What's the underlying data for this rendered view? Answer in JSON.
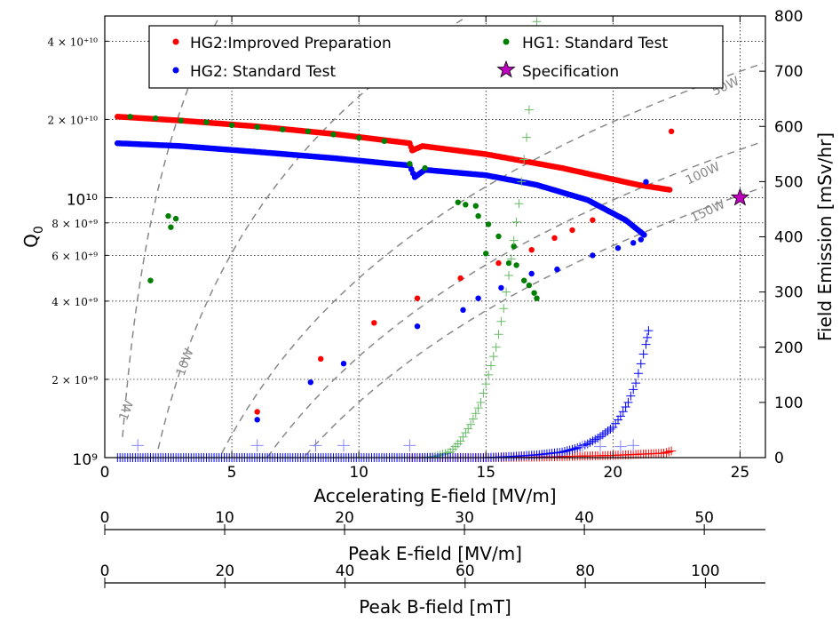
{
  "chart_data": {
    "type": "scatter",
    "x_axis": {
      "label": "Accelerating E-field [MV/m]",
      "range": [
        0,
        26
      ],
      "ticks": [
        "0",
        "5",
        "10",
        "15",
        "20",
        "25"
      ]
    },
    "y_axis_left": {
      "label": "Q0",
      "scale": "log",
      "range": [
        1000000000.0,
        50000000000.0
      ],
      "ticks": [
        {
          "v": 1000000000.0,
          "label": "10⁹",
          "major": true
        },
        {
          "v": 2000000000.0,
          "label": "2 × 10⁺⁹",
          "major": false
        },
        {
          "v": 4000000000.0,
          "label": "4 × 10⁺⁹",
          "major": false
        },
        {
          "v": 6000000000.0,
          "label": "6 × 10⁺⁹",
          "major": false
        },
        {
          "v": 8000000000.0,
          "label": "8 × 10⁺⁹",
          "major": false
        },
        {
          "v": 10000000000.0,
          "label": "10¹⁰",
          "major": true
        },
        {
          "v": 20000000000.0,
          "label": "2 × 10⁺¹⁰",
          "major": false
        },
        {
          "v": 40000000000.0,
          "label": "4 × 10⁺¹⁰",
          "major": false
        }
      ]
    },
    "y_axis_right": {
      "label": "Field Emission [mSv/hr]",
      "range": [
        0,
        800
      ],
      "ticks": [
        "0",
        "100",
        "200",
        "300",
        "400",
        "500",
        "600",
        "700",
        "800"
      ]
    },
    "secondary_x_axes": [
      {
        "label": "Peak E-field [MV/m]",
        "range": [
          0,
          55.1
        ],
        "ticks": [
          "0",
          "10",
          "20",
          "30",
          "40",
          "50"
        ]
      },
      {
        "label": "Peak B-field [mT]",
        "range": [
          0,
          110
        ],
        "ticks": [
          "0",
          "20",
          "40",
          "60",
          "80",
          "100"
        ]
      }
    ],
    "grid": true,
    "legend": {
      "placement": "top",
      "entries": [
        {
          "label": "HG2:Improved Preparation",
          "color": "#ff0000",
          "marker": "dot"
        },
        {
          "label": "HG1: Standard Test",
          "color": "#008000",
          "marker": "dot"
        },
        {
          "label": "HG2: Standard Test",
          "color": "#0000ff",
          "marker": "dot"
        },
        {
          "label": "Specification",
          "color": "#bf00bf",
          "marker": "star"
        }
      ]
    },
    "contours": [
      {
        "label": "1W",
        "power": 1
      },
      {
        "label": "10W",
        "power": 10
      },
      {
        "label": "50W",
        "power": 50
      },
      {
        "label": "100W",
        "power": 100
      },
      {
        "label": "150W",
        "power": 150
      }
    ],
    "series": [
      {
        "name": "HG2:Improved Preparation",
        "kind": "q0_curve",
        "color": "#ff0000",
        "points": [
          [
            0.5,
            20500000000.0
          ],
          [
            3,
            19800000000.0
          ],
          [
            6,
            18800000000.0
          ],
          [
            9,
            17600000000.0
          ],
          [
            12,
            16200000000.0
          ],
          [
            12.1,
            15200000000.0
          ],
          [
            12.5,
            15800000000.0
          ],
          [
            15,
            14700000000.0
          ],
          [
            18,
            13000000000.0
          ],
          [
            21,
            11200000000.0
          ],
          [
            22.3,
            10700000000.0
          ]
        ]
      },
      {
        "name": "HG2:Improved Preparation",
        "kind": "q0_points",
        "color": "#ff0000",
        "points": [
          [
            6,
            1500000000.0
          ],
          [
            8.5,
            2400000000.0
          ],
          [
            10.6,
            3300000000.0
          ],
          [
            12.3,
            4100000000.0
          ],
          [
            14,
            4900000000.0
          ],
          [
            15.5,
            5600000000.0
          ],
          [
            16.8,
            6300000000.0
          ],
          [
            17.7,
            7000000000.0
          ],
          [
            18.4,
            7500000000.0
          ],
          [
            19.2,
            8200000000.0
          ],
          [
            22.3,
            18000000000.0
          ]
        ]
      },
      {
        "name": "HG2: Standard Test",
        "kind": "q0_curve",
        "color": "#0000ff",
        "points": [
          [
            0.5,
            16200000000.0
          ],
          [
            3,
            15800000000.0
          ],
          [
            6,
            15000000000.0
          ],
          [
            9,
            14200000000.0
          ],
          [
            12,
            13300000000.0
          ],
          [
            12.2,
            12000000000.0
          ],
          [
            12.6,
            12800000000.0
          ],
          [
            15,
            12200000000.0
          ],
          [
            17,
            11200000000.0
          ],
          [
            19,
            9800000000.0
          ],
          [
            20.5,
            8200000000.0
          ],
          [
            21.3,
            7100000000.0
          ]
        ]
      },
      {
        "name": "HG2: Standard Test",
        "kind": "q0_points",
        "color": "#0000ff",
        "points": [
          [
            6,
            1400000000.0
          ],
          [
            8.1,
            1950000000.0
          ],
          [
            9.4,
            2300000000.0
          ],
          [
            12.3,
            3200000000.0
          ],
          [
            14.1,
            3700000000.0
          ],
          [
            14.7,
            4100000000.0
          ],
          [
            15.6,
            4500000000.0
          ],
          [
            16.8,
            5100000000.0
          ],
          [
            17.8,
            5300000000.0
          ],
          [
            19.2,
            6000000000.0
          ],
          [
            20.2,
            6400000000.0
          ],
          [
            20.8,
            6700000000.0
          ],
          [
            21.1,
            6900000000.0
          ],
          [
            21.3,
            11500000000.0
          ]
        ]
      },
      {
        "name": "HG1: Standard Test",
        "kind": "q0_points",
        "color": "#008000",
        "points": [
          [
            1.8,
            4800000000.0
          ],
          [
            2.5,
            8500000000.0
          ],
          [
            2.6,
            7700000000.0
          ],
          [
            2.8,
            8300000000.0
          ],
          [
            1,
            20500000000.0
          ],
          [
            2,
            20200000000.0
          ],
          [
            3,
            19800000000.0
          ],
          [
            4,
            19500000000.0
          ],
          [
            5,
            19000000000.0
          ],
          [
            6,
            18700000000.0
          ],
          [
            7,
            18300000000.0
          ],
          [
            8,
            18000000000.0
          ],
          [
            9,
            17500000000.0
          ],
          [
            10,
            17000000000.0
          ],
          [
            11,
            16500000000.0
          ],
          [
            12,
            13500000000.0
          ],
          [
            12.6,
            13000000000.0
          ],
          [
            13.9,
            9600000000.0
          ],
          [
            14.2,
            9400000000.0
          ],
          [
            14.6,
            9300000000.0
          ],
          [
            14.7,
            8500000000.0
          ],
          [
            15.1,
            7900000000.0
          ],
          [
            15.0,
            6100000000.0
          ],
          [
            15.5,
            7100000000.0
          ],
          [
            16.1,
            6500000000.0
          ],
          [
            15.9,
            5600000000.0
          ],
          [
            16.2,
            5500000000.0
          ],
          [
            16.5,
            4800000000.0
          ],
          [
            16.7,
            4600000000.0
          ],
          [
            16.9,
            4300000000.0
          ],
          [
            17.0,
            4100000000.0
          ]
        ]
      },
      {
        "name": "HG2:Improved Preparation",
        "kind": "fe_markers",
        "color": "#ff0000",
        "points": [
          [
            12,
            0
          ],
          [
            15,
            0
          ],
          [
            17,
            1
          ],
          [
            18,
            2
          ],
          [
            19,
            3
          ],
          [
            20,
            4
          ],
          [
            21,
            6
          ],
          [
            22,
            8
          ],
          [
            22.3,
            12
          ]
        ]
      },
      {
        "name": "HG1: Standard Test",
        "kind": "fe_markers",
        "color": "#66bb66",
        "points": [
          [
            12.5,
            0
          ],
          [
            13,
            2
          ],
          [
            13.6,
            10
          ],
          [
            14,
            30
          ],
          [
            14.4,
            60
          ],
          [
            14.8,
            100
          ],
          [
            15.1,
            150
          ],
          [
            15.4,
            200
          ],
          [
            15.7,
            270
          ],
          [
            16,
            360
          ],
          [
            16.3,
            460
          ],
          [
            16.6,
            580
          ],
          [
            16.8,
            680
          ],
          [
            17,
            790
          ]
        ]
      },
      {
        "name": "HG2: Standard Test",
        "kind": "fe_markers",
        "color": "#0000ff",
        "points": [
          [
            0.5,
            0
          ],
          [
            4,
            0
          ],
          [
            8,
            0
          ],
          [
            12,
            0
          ],
          [
            15,
            0
          ],
          [
            16,
            2
          ],
          [
            17,
            5
          ],
          [
            18,
            10
          ],
          [
            18.5,
            16
          ],
          [
            19,
            25
          ],
          [
            19.5,
            38
          ],
          [
            20,
            55
          ],
          [
            20.3,
            75
          ],
          [
            20.6,
            100
          ],
          [
            20.9,
            135
          ],
          [
            21.1,
            170
          ],
          [
            21.3,
            205
          ],
          [
            21.4,
            230
          ]
        ]
      },
      {
        "name": "HG2: Standard Test",
        "kind": "fe_scatter",
        "color": "#8888ff",
        "points": [
          [
            1.3,
            22
          ],
          [
            6,
            22
          ],
          [
            8.3,
            22
          ],
          [
            9.4,
            22
          ],
          [
            12,
            22
          ],
          [
            18.8,
            20
          ],
          [
            19.5,
            20
          ],
          [
            20.3,
            20
          ],
          [
            20.8,
            22
          ]
        ]
      },
      {
        "name": "Specification",
        "kind": "star",
        "color": "#bf00bf",
        "points": [
          [
            25,
            10000000000.0
          ]
        ]
      }
    ]
  }
}
